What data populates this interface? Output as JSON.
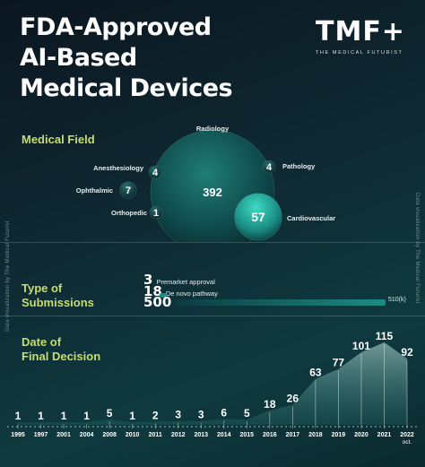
{
  "header": {
    "title_lines": [
      "FDA-Approved",
      "AI-Based",
      "Medical Devices"
    ],
    "logo_mark": "TMF+",
    "logo_sub": "THE MEDICAL FUTURIST"
  },
  "credit": "Data visualization by The Medical Futurist",
  "sections": {
    "medical_field": "Medical Field",
    "type_of_submissions": "Type of\nSubmissions",
    "date_of_final_decision": "Date of\nFinal Decision"
  },
  "colors": {
    "accent_label": "#c8dd6a",
    "bubble_teal": "#1a8a82",
    "bubble_light": "#3ddbc4",
    "bar_teal": "#1e8b84"
  },
  "chart_data": [
    {
      "type": "bubble",
      "title": "Medical Field",
      "points": [
        {
          "label": "Radiology",
          "value": 392
        },
        {
          "label": "Cardiovascular",
          "value": 57
        },
        {
          "label": "Ophthalmic",
          "value": 7
        },
        {
          "label": "Anesthesiology",
          "value": 4
        },
        {
          "label": "Pathology",
          "value": 4
        },
        {
          "label": "Orthopedic",
          "value": 1
        }
      ]
    },
    {
      "type": "bar",
      "title": "Type of Submissions",
      "series": [
        {
          "name": "Premarket approval",
          "value": 3
        },
        {
          "name": "De novo pathway",
          "value": 18
        },
        {
          "name": "510(k)",
          "value": 500
        }
      ]
    },
    {
      "type": "area",
      "title": "Date of Final Decision",
      "categories": [
        "1995",
        "1997",
        "2001",
        "2004",
        "2008",
        "2010",
        "2011",
        "2012",
        "2013",
        "2014",
        "2015",
        "2016",
        "2017",
        "2018",
        "2019",
        "2020",
        "2021",
        "2022 oct."
      ],
      "values": [
        1,
        1,
        1,
        1,
        5,
        1,
        2,
        3,
        3,
        6,
        5,
        18,
        26,
        63,
        77,
        101,
        115,
        92
      ]
    }
  ]
}
